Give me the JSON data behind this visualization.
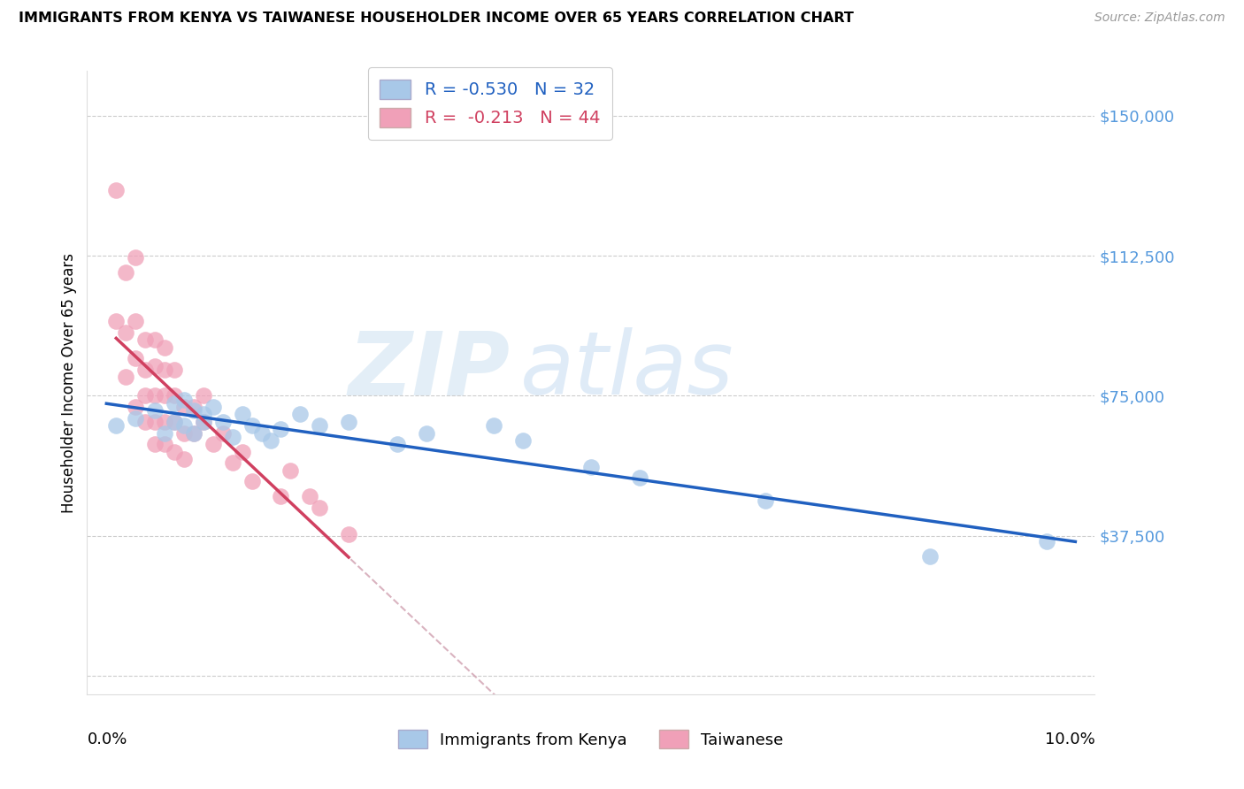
{
  "title": "IMMIGRANTS FROM KENYA VS TAIWANESE HOUSEHOLDER INCOME OVER 65 YEARS CORRELATION CHART",
  "source": "Source: ZipAtlas.com",
  "ylabel": "Householder Income Over 65 years",
  "y_ticks": [
    0,
    37500,
    75000,
    112500,
    150000
  ],
  "y_tick_labels": [
    "",
    "$37,500",
    "$75,000",
    "$112,500",
    "$150,000"
  ],
  "xlim": [
    -0.002,
    0.102
  ],
  "ylim": [
    -5000,
    162000
  ],
  "legend_kenya_R": "-0.530",
  "legend_kenya_N": "32",
  "legend_taiwan_R": "-0.213",
  "legend_taiwan_N": "44",
  "kenya_color": "#a8c8e8",
  "taiwan_color": "#f0a0b8",
  "kenya_line_color": "#2060c0",
  "taiwan_line_color": "#d04060",
  "taiwan_dash_color": "#d0a0b0",
  "watermark_zip": "ZIP",
  "watermark_atlas": "atlas",
  "kenya_x": [
    0.001,
    0.003,
    0.005,
    0.006,
    0.007,
    0.007,
    0.008,
    0.008,
    0.009,
    0.009,
    0.01,
    0.01,
    0.011,
    0.012,
    0.013,
    0.014,
    0.015,
    0.016,
    0.017,
    0.018,
    0.02,
    0.022,
    0.025,
    0.03,
    0.033,
    0.04,
    0.043,
    0.05,
    0.055,
    0.068,
    0.085,
    0.097
  ],
  "kenya_y": [
    67000,
    69000,
    71000,
    65000,
    73000,
    68000,
    67000,
    74000,
    65000,
    71000,
    68000,
    70000,
    72000,
    68000,
    64000,
    70000,
    67000,
    65000,
    63000,
    66000,
    70000,
    67000,
    68000,
    62000,
    65000,
    67000,
    63000,
    56000,
    53000,
    47000,
    32000,
    36000
  ],
  "taiwan_x": [
    0.001,
    0.001,
    0.002,
    0.002,
    0.002,
    0.003,
    0.003,
    0.003,
    0.003,
    0.004,
    0.004,
    0.004,
    0.004,
    0.005,
    0.005,
    0.005,
    0.005,
    0.005,
    0.006,
    0.006,
    0.006,
    0.006,
    0.006,
    0.007,
    0.007,
    0.007,
    0.007,
    0.008,
    0.008,
    0.008,
    0.009,
    0.009,
    0.01,
    0.01,
    0.011,
    0.012,
    0.013,
    0.014,
    0.015,
    0.018,
    0.019,
    0.021,
    0.022,
    0.025
  ],
  "taiwan_y": [
    130000,
    95000,
    108000,
    92000,
    80000,
    112000,
    95000,
    85000,
    72000,
    90000,
    82000,
    75000,
    68000,
    90000,
    83000,
    75000,
    68000,
    62000,
    88000,
    82000,
    75000,
    68000,
    62000,
    82000,
    75000,
    68000,
    60000,
    72000,
    65000,
    58000,
    72000,
    65000,
    75000,
    68000,
    62000,
    65000,
    57000,
    60000,
    52000,
    48000,
    55000,
    48000,
    45000,
    38000
  ]
}
